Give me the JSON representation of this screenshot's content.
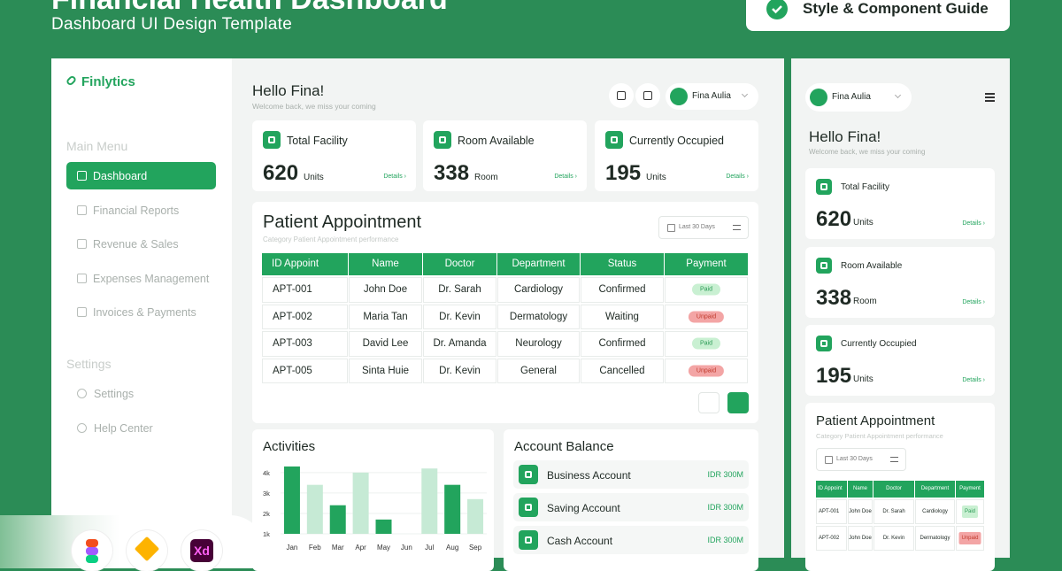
{
  "header": {
    "title": "Financial Health Dashboard",
    "subtitle": "Dashboard UI Design Template",
    "guide_button": "Style & Component Guide"
  },
  "sidebar": {
    "brand": "Finlytics",
    "main_menu_label": "Main Menu",
    "main_menu": [
      "Dashboard",
      "Financial Reports",
      "Revenue & Sales",
      "Expenses Management",
      "Invoices & Payments"
    ],
    "settings_label": "Settings",
    "settings_menu": [
      "Settings",
      "Help Center"
    ]
  },
  "topbar": {
    "greeting": "Hello Fina!",
    "welcome": "Welcome back, we miss your coming",
    "user": "Fina Aulia"
  },
  "stats": [
    {
      "label": "Total Facility",
      "value": 620,
      "unit": "Units",
      "link": "Details ›"
    },
    {
      "label": "Room Available",
      "value": 338,
      "unit": "Room",
      "link": "Details ›"
    },
    {
      "label": "Currently Occupied",
      "value": 195,
      "unit": "Units",
      "link": "Details ›"
    }
  ],
  "appointments": {
    "title": "Patient Appointment",
    "subtitle": "Category Patient Appointment performance",
    "filter": "Last 30 Days",
    "columns": [
      "ID Appoint",
      "Name",
      "Doctor",
      "Department",
      "Status",
      "Payment"
    ],
    "rows": [
      [
        "APT-001",
        "John Doe",
        "Dr. Sarah",
        "Cardiology",
        "Confirmed",
        "Paid"
      ],
      [
        "APT-002",
        "Maria Tan",
        "Dr. Kevin",
        "Dermatology",
        "Waiting",
        "Unpaid"
      ],
      [
        "APT-003",
        "David Lee",
        "Dr. Amanda",
        "Neurology",
        "Confirmed",
        "Paid"
      ],
      [
        "APT-005",
        "Sinta Huie",
        "Dr. Kevin",
        "General",
        "Cancelled",
        "Unpaid"
      ]
    ]
  },
  "chart_data": {
    "type": "bar",
    "title": "Activities",
    "categories": [
      "Jan",
      "Feb",
      "Mar",
      "Apr",
      "May",
      "Jun",
      "Jul",
      "Aug",
      "Sep"
    ],
    "series": [
      {
        "color": "#22a45d",
        "values": [
          4300,
          null,
          2400,
          null,
          1700,
          null,
          null,
          3400,
          null
        ]
      },
      {
        "color": "#c6ead5",
        "values": [
          null,
          3400,
          null,
          4000,
          null,
          null,
          4200,
          null,
          2700
        ]
      }
    ],
    "ylim": [
      1000,
      4600
    ],
    "yticks": [
      {
        "value": 1000,
        "label": "1k"
      },
      {
        "value": 2000,
        "label": "2k"
      },
      {
        "value": 3000,
        "label": "3k"
      },
      {
        "value": 4000,
        "label": "4k"
      }
    ],
    "grid": true
  },
  "account_balance": {
    "title": "Account Balance",
    "accounts": [
      {
        "name": "Business Account",
        "amount": "IDR 300M"
      },
      {
        "name": "Saving Account",
        "amount": "IDR 300M"
      },
      {
        "name": "Cash Account",
        "amount": "IDR 300M"
      }
    ]
  },
  "mobile": {
    "rows": [
      [
        "APT-001",
        "John Doe",
        "Dr. Sarah",
        "Cardiology",
        "Paid"
      ],
      [
        "APT-002",
        "John Doe",
        "Dr. Kevin",
        "Dermatology",
        "Unpaid"
      ]
    ]
  },
  "badges": {
    "xd": "Xd"
  }
}
